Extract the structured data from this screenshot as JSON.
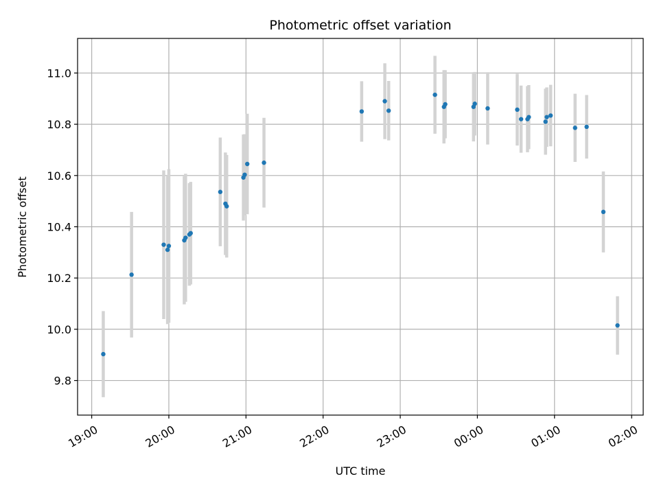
{
  "chart_data": {
    "type": "scatter",
    "title": "Photometric offset variation",
    "xlabel": "UTC time",
    "ylabel": "Photometric offset",
    "x_ticks": [
      "19:00",
      "20:00",
      "21:00",
      "22:00",
      "23:00",
      "00:00",
      "01:00",
      "02:00"
    ],
    "y_ticks": [
      "9.8",
      "10.0",
      "10.2",
      "10.4",
      "10.6",
      "10.8",
      "11.0"
    ],
    "xlim": [
      "18:49",
      "02:09"
    ],
    "ylim": [
      9.665,
      11.135
    ],
    "grid": true,
    "legend": "none",
    "colors": {
      "point": "#1f77b4",
      "errorbar": "#d3d3d3",
      "grid": "#b0b0b0"
    },
    "series": [
      {
        "points": [
          {
            "x": "19:09",
            "y": 9.903,
            "yerr": 0.168
          },
          {
            "x": "19:31",
            "y": 10.213,
            "yerr": 0.245
          },
          {
            "x": "19:56",
            "y": 10.33,
            "yerr": 0.29
          },
          {
            "x": "19:59",
            "y": 10.31,
            "yerr": 0.29
          },
          {
            "x": "20:00",
            "y": 10.325,
            "yerr": 0.3
          },
          {
            "x": "20:12",
            "y": 10.347,
            "yerr": 0.25
          },
          {
            "x": "20:13",
            "y": 10.357,
            "yerr": 0.25
          },
          {
            "x": "20:16",
            "y": 10.37,
            "yerr": 0.2
          },
          {
            "x": "20:17",
            "y": 10.375,
            "yerr": 0.2
          },
          {
            "x": "20:40",
            "y": 10.536,
            "yerr": 0.212
          },
          {
            "x": "20:44",
            "y": 10.49,
            "yerr": 0.2
          },
          {
            "x": "20:45",
            "y": 10.48,
            "yerr": 0.2
          },
          {
            "x": "20:58",
            "y": 10.592,
            "yerr": 0.168
          },
          {
            "x": "20:59",
            "y": 10.603,
            "yerr": 0.158
          },
          {
            "x": "21:01",
            "y": 10.645,
            "yerr": 0.196
          },
          {
            "x": "21:14",
            "y": 10.65,
            "yerr": 0.175
          },
          {
            "x": "22:30",
            "y": 10.85,
            "yerr": 0.118
          },
          {
            "x": "22:48",
            "y": 10.89,
            "yerr": 0.148
          },
          {
            "x": "22:51",
            "y": 10.853,
            "yerr": 0.116
          },
          {
            "x": "23:27",
            "y": 10.915,
            "yerr": 0.152
          },
          {
            "x": "23:34",
            "y": 10.868,
            "yerr": 0.143
          },
          {
            "x": "23:35",
            "y": 10.878,
            "yerr": 0.133
          },
          {
            "x": "23:57",
            "y": 10.868,
            "yerr": 0.135
          },
          {
            "x": "23:58",
            "y": 10.88,
            "yerr": 0.124
          },
          {
            "x": "00:08",
            "y": 10.862,
            "yerr": 0.141
          },
          {
            "x": "00:31",
            "y": 10.857,
            "yerr": 0.14
          },
          {
            "x": "00:34",
            "y": 10.82,
            "yerr": 0.131
          },
          {
            "x": "00:39",
            "y": 10.82,
            "yerr": 0.129
          },
          {
            "x": "00:40",
            "y": 10.828,
            "yerr": 0.125
          },
          {
            "x": "00:53",
            "y": 10.81,
            "yerr": 0.129
          },
          {
            "x": "00:54",
            "y": 10.828,
            "yerr": 0.116
          },
          {
            "x": "00:57",
            "y": 10.834,
            "yerr": 0.12
          },
          {
            "x": "01:16",
            "y": 10.786,
            "yerr": 0.133
          },
          {
            "x": "01:25",
            "y": 10.79,
            "yerr": 0.124
          },
          {
            "x": "01:38",
            "y": 10.458,
            "yerr": 0.158
          },
          {
            "x": "01:49",
            "y": 10.015,
            "yerr": 0.114
          }
        ]
      }
    ]
  }
}
